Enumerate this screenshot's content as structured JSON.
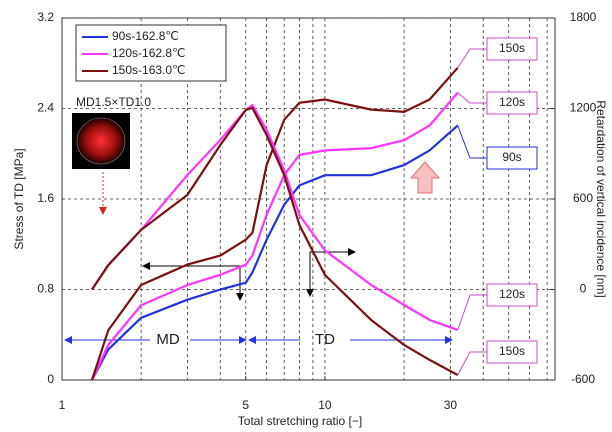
{
  "chart_data": {
    "type": "line",
    "xlabel": "Total stretching ratio [−]",
    "ylabel": "Stress of TD [MPa]",
    "y2label": "Retardation of vertical incidence  [nm]",
    "log_x": true,
    "xlim": [
      1,
      75
    ],
    "xticks": [
      1,
      5,
      10,
      30
    ],
    "xgrid": [
      2,
      3,
      4,
      5,
      6,
      7,
      8,
      9,
      10,
      20,
      30,
      40,
      50,
      60,
      70
    ],
    "ylim": [
      0,
      3.2
    ],
    "yticks": [
      0,
      0.8,
      1.6,
      2.4,
      3.2
    ],
    "y2lim": [
      -600,
      1800
    ],
    "y2ticks": [
      -600,
      0,
      600,
      1200,
      1800
    ],
    "grid": true,
    "legend": "upper left",
    "x": [
      1.3,
      1.5,
      2,
      3,
      4,
      5,
      5.3,
      6,
      7,
      8,
      10,
      15,
      20,
      25,
      32
    ],
    "series": [
      {
        "name": "90s-162.8℃",
        "color": "#2233dd",
        "values": [
          0,
          0.27,
          0.55,
          0.71,
          0.8,
          0.86,
          0.95,
          1.24,
          1.55,
          1.72,
          1.81,
          1.81,
          1.9,
          2.03,
          2.25
        ]
      },
      {
        "name": "120s-162.8℃",
        "color": "#ff33ff",
        "values": [
          0,
          0.31,
          0.66,
          0.84,
          0.93,
          1.02,
          1.1,
          1.46,
          1.81,
          1.99,
          2.03,
          2.05,
          2.12,
          2.25,
          2.54
        ]
      },
      {
        "name": "150s-163.0℃",
        "color": "#7a1010",
        "values": [
          0,
          0.44,
          0.84,
          1.02,
          1.1,
          1.24,
          1.3,
          1.9,
          2.3,
          2.45,
          2.48,
          2.39,
          2.37,
          2.48,
          2.76
        ]
      },
      {
        "color": "#ff33ff",
        "axis": "y2",
        "values": [
          0,
          162,
          395,
          759,
          991,
          1190,
          1223,
          1058,
          792,
          494,
          259,
          30,
          -103,
          -202,
          -268
        ]
      },
      {
        "color": "#7a1010",
        "axis": "y2",
        "values": [
          0,
          162,
          395,
          627,
          958,
          1190,
          1203,
          1024,
          759,
          428,
          97,
          -202,
          -368,
          -467,
          -567
        ]
      }
    ],
    "annotations": [
      "MD1.5×TD1.0",
      "MD",
      "TD",
      "150s",
      "120s",
      "90s",
      "120s",
      "150s"
    ]
  }
}
